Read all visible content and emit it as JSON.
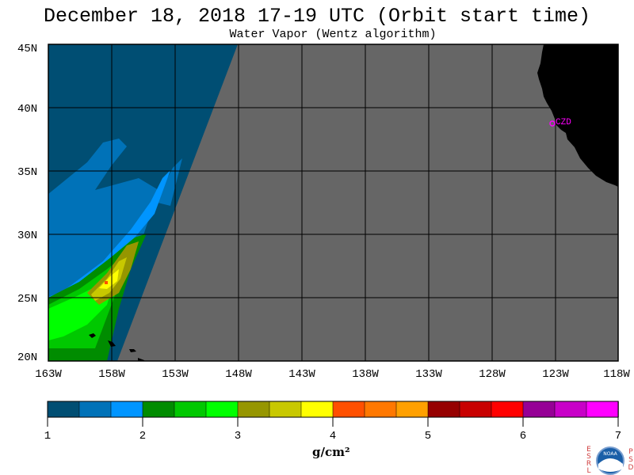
{
  "title": "December 18, 2018  17-19 UTC  (Orbit start time)",
  "subtitle": "Water Vapor (Wentz algorithm)",
  "map": {
    "lon_range": [
      -163,
      -118
    ],
    "lat_range": [
      20,
      45
    ],
    "lat_ticks": [
      "45N",
      "40N",
      "35N",
      "30N",
      "25N",
      "20N"
    ],
    "lon_ticks": [
      "163W",
      "158W",
      "153W",
      "148W",
      "143W",
      "138W",
      "133W",
      "128W",
      "123W",
      "118W"
    ],
    "station_label": "CZD",
    "colors": {
      "no_data": "#666666",
      "land": "#000000",
      "station": "#ff00ff"
    }
  },
  "colorbar": {
    "colors": [
      "#004e73",
      "#0072b8",
      "#0095ff",
      "#008c00",
      "#00c800",
      "#00ff00",
      "#969600",
      "#c8c800",
      "#ffff00",
      "#ff5000",
      "#ff7800",
      "#ffa000",
      "#960000",
      "#c80000",
      "#ff0000",
      "#960096",
      "#c800c8",
      "#ff00ff"
    ],
    "tick_labels": [
      "1",
      "2",
      "3",
      "4",
      "5",
      "6",
      "7"
    ],
    "unit": "g/cm²"
  },
  "logos": {
    "left_letters": [
      "E",
      "S",
      "R",
      "L"
    ],
    "right_letters": [
      "P",
      "S",
      "D"
    ],
    "badge_text": "NOAA"
  }
}
